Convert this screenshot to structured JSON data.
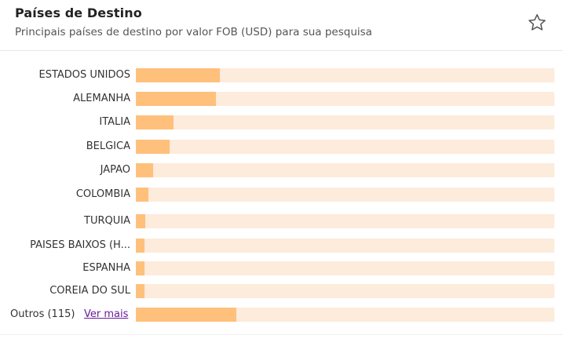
{
  "header": {
    "title": "Países de Destino",
    "subtitle": "Principais países de destino por valor FOB (USD) para sua pesquisa",
    "favorite_icon": "star-outline-icon"
  },
  "colors": {
    "bar_fill": "#ffc07c",
    "bar_track": "#fdebdc",
    "link": "#6a1b9a"
  },
  "chart_data": {
    "type": "bar",
    "orientation": "horizontal",
    "unit": "FOB (USD)",
    "categories": [
      "ESTADOS UNIDOS",
      "ALEMANHA",
      "ITALIA",
      "BELGICA",
      "JAPAO",
      "COLOMBIA",
      "TURQUIA",
      "PAISES BAIXOS (H...",
      "ESPANHA",
      "COREIA DO SUL"
    ],
    "values": [
      0.2,
      0.191,
      0.09,
      0.081,
      0.041,
      0.03,
      0.022,
      0.021,
      0.02,
      0.02
    ],
    "value_scale": "fraction of bar track"
  },
  "outros": {
    "label": "Outros (115)",
    "link_label": "Ver mais",
    "value": 0.24
  }
}
